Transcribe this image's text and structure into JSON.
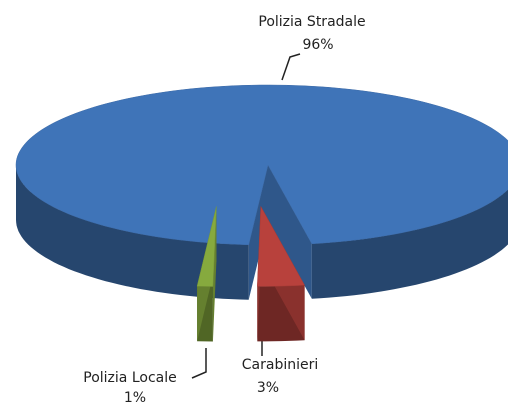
{
  "chart_data": {
    "type": "pie",
    "categories": [
      "Polizia Stradale",
      "Carabinieri",
      "Polizia Locale"
    ],
    "values": [
      96,
      3,
      1
    ],
    "value_labels": [
      "96%",
      "3%",
      "1%"
    ],
    "colors": [
      "#3f74b8",
      "#b8413c",
      "#86aa3e"
    ]
  }
}
